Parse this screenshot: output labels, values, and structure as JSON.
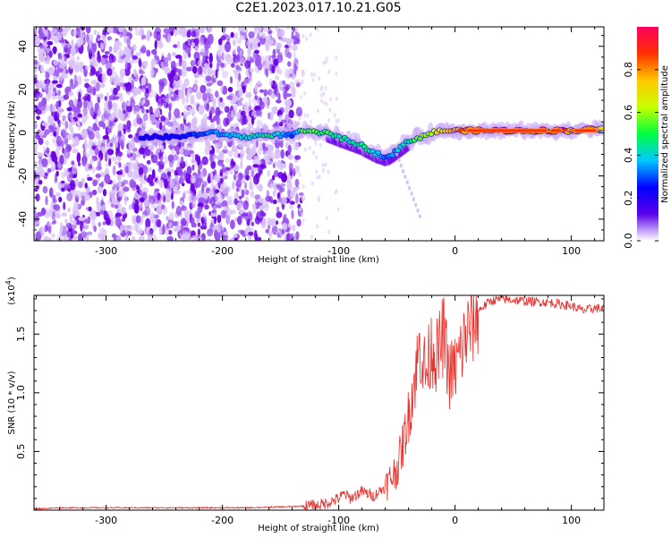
{
  "title": "C2E1.2023.017.10.21.G05",
  "chart_data": [
    {
      "type": "heatmap",
      "title": "C2E1.2023.017.10.21.G05",
      "xlabel": "Height of straight line (km)",
      "ylabel": "Frequency (Hz)",
      "xlim": [
        -362,
        128
      ],
      "ylim": [
        -50,
        49
      ],
      "xticks": [
        -300,
        -200,
        -100,
        0,
        100
      ],
      "yticks": [
        -40,
        -20,
        0,
        20,
        40
      ],
      "colorbar": {
        "label": "Normalized spectral amplitude",
        "range": [
          0,
          1
        ],
        "ticks": [
          "0.0",
          "0.2",
          "0.4",
          "0.6",
          "0.8"
        ],
        "colors": [
          "#ffffff",
          "#5a00e8",
          "#0000ff",
          "#00c8ff",
          "#00ff40",
          "#c8ff00",
          "#ffc800",
          "#ff3000",
          "#ff0060"
        ]
      },
      "ridge": {
        "x": [
          -270,
          -240,
          -210,
          -180,
          -160,
          -140,
          -130,
          -120,
          -110,
          -100,
          -90,
          -80,
          -70,
          -60,
          -55,
          -50,
          -40,
          -30,
          -20,
          -10,
          0,
          20,
          40,
          60,
          80,
          100,
          128
        ],
        "y": [
          -2,
          -2,
          0,
          -2,
          -1,
          -1,
          1,
          0,
          0,
          -2,
          -4,
          -6,
          -9,
          -11,
          -10,
          -8,
          -4,
          -2,
          0,
          1,
          1,
          1,
          1,
          1,
          1,
          1,
          2
        ],
        "amplitude": [
          0.25,
          0.25,
          0.35,
          0.45,
          0.5,
          0.3,
          0.6,
          0.55,
          0.55,
          0.5,
          0.45,
          0.5,
          0.45,
          0.35,
          0.35,
          0.4,
          0.5,
          0.6,
          0.7,
          0.8,
          0.85,
          0.95,
          0.95,
          0.95,
          0.9,
          0.9,
          0.85
        ]
      }
    },
    {
      "type": "line",
      "xlabel": "Height of straight line (km)",
      "ylabel": "SNR (10 * v/v)",
      "y_multiplier": "(x10",
      "y_multiplier_exp": "4",
      "xlim": [
        -362,
        128
      ],
      "ylim": [
        0,
        1.83
      ],
      "xticks": [
        -300,
        -200,
        -100,
        0,
        100
      ],
      "yticks": [
        0.5,
        1.0,
        1.5
      ],
      "color": "#e8302c",
      "series": [
        {
          "x": [
            -362,
            -340,
            -300,
            -260,
            -220,
            -180,
            -140,
            -120,
            -110,
            -100,
            -95,
            -90,
            -80,
            -70,
            -60,
            -50,
            -45,
            -40,
            -35,
            -30,
            -25,
            -20,
            -15,
            -10,
            -5,
            0,
            10,
            20,
            30,
            40,
            60,
            80,
            100,
            110,
            120,
            128
          ],
          "y": [
            0.01,
            0.02,
            0.02,
            0.02,
            0.02,
            0.02,
            0.03,
            0.04,
            0.06,
            0.1,
            0.14,
            0.1,
            0.16,
            0.12,
            0.2,
            0.35,
            0.55,
            0.8,
            1.1,
            1.4,
            1.15,
            1.4,
            1.3,
            1.5,
            1.15,
            1.2,
            1.5,
            1.7,
            1.78,
            1.8,
            1.78,
            1.77,
            1.74,
            1.7,
            1.72,
            1.72
          ]
        }
      ]
    }
  ]
}
